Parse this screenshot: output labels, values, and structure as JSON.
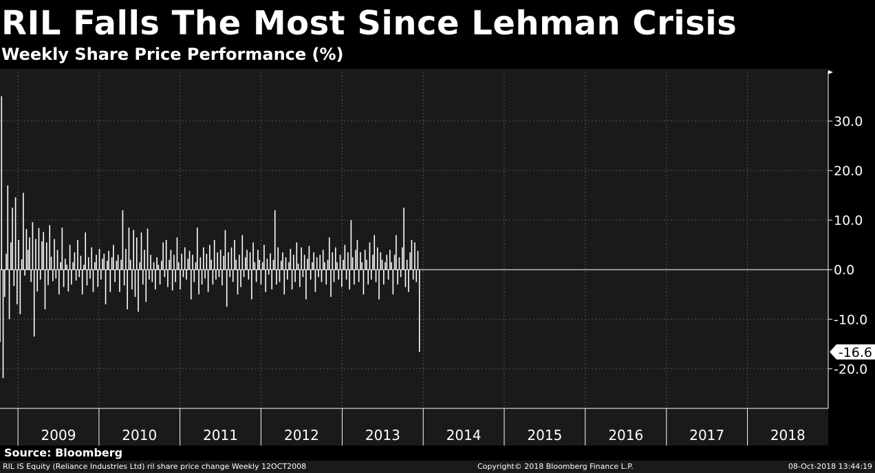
{
  "header": {
    "title": "RIL Falls The Most Since Lehman Crisis",
    "subtitle": "Weekly Share Price Performance (%)"
  },
  "source": "Source: Bloomberg",
  "footer": {
    "left": "RIL IS Equity (Reliance Industries Ltd) ril share price change  Weekly 12OCT2008",
    "center": "Copyright© 2018 Bloomberg Finance L.P.",
    "right": "08-Oct-2018 13:44:19"
  },
  "colors": {
    "background": "#1a1a1a",
    "bars": "#ffffff",
    "grid": "#555555"
  },
  "chart_data": {
    "type": "bar",
    "ylim": [
      -28,
      40
    ],
    "yticks": [
      -20,
      -10,
      0,
      10,
      20,
      30
    ],
    "ytick_labels": [
      "-20.0",
      "-10.0",
      "0.0",
      "10.0",
      "20.0",
      "30.0"
    ],
    "xtick_labels": [
      "2009",
      "2010",
      "2011",
      "2012",
      "2013",
      "2014",
      "2015",
      "2016",
      "2017",
      "2018"
    ],
    "x_start": "2008-10-12",
    "x_end": "2018-12-31",
    "last_value_label": "-16.6",
    "series": [
      {
        "values": [
          -14.6,
          35.0,
          -21.9,
          -5.5,
          3.2,
          17.0,
          -10.0,
          5.5,
          12.5,
          -3.3,
          14.6,
          -7.0,
          6.0,
          -9.0,
          2.1,
          15.5,
          -1.2,
          8.2,
          4.0,
          6.5,
          -2.5,
          9.6,
          -13.5,
          6.2,
          -4.4,
          8.4,
          -2.0,
          5.7,
          7.6,
          -8.0,
          5.5,
          -3.1,
          9.0,
          2.6,
          -2.3,
          6.2,
          -1.8,
          4.0,
          -5.0,
          1.5,
          8.5,
          -3.5,
          2.2,
          1.0,
          -4.4,
          5.0,
          -3.0,
          1.5,
          3.5,
          -2.2,
          6.0,
          -1.5,
          2.8,
          -5.0,
          1.0,
          7.5,
          -3.2,
          2.5,
          -1.8,
          4.5,
          -4.5,
          1.5,
          3.0,
          -3.5,
          4.2,
          -2.0,
          2.2,
          3.2,
          -7.0,
          1.8,
          3.8,
          -4.5,
          2.5,
          5.0,
          -2.5,
          1.8,
          3.0,
          -4.5,
          2.0,
          12.0,
          -3.2,
          4.2,
          -8.0,
          8.5,
          2.0,
          -4.0,
          8.0,
          -5.5,
          6.5,
          -8.5,
          1.5,
          7.5,
          -3.0,
          4.0,
          -6.5,
          8.3,
          -2.0,
          3.0,
          -2.5,
          1.5,
          -4.0,
          2.5,
          1.0,
          -3.0,
          1.8,
          5.5,
          -1.5,
          6.0,
          -3.5,
          2.0,
          4.0,
          -4.2,
          3.0,
          -2.5,
          6.5,
          1.5,
          -4.0,
          3.2,
          -1.5,
          4.5,
          -2.0,
          2.2,
          3.8,
          -6.0,
          3.0,
          -2.5,
          1.5,
          8.5,
          -5.0,
          2.5,
          -3.0,
          4.5,
          -1.8,
          3.2,
          -4.5,
          5.0,
          2.0,
          -3.0,
          6.0,
          -2.0,
          3.5,
          -1.5,
          4.0,
          -3.2,
          2.8,
          8.0,
          -7.5,
          3.5,
          -1.5,
          4.5,
          -2.5,
          6.0,
          2.0,
          -5.0,
          3.0,
          -3.5,
          7.0,
          -1.5,
          2.5,
          4.0,
          -2.0,
          3.5,
          -6.0,
          5.5,
          1.5,
          -2.5,
          4.0,
          2.0,
          -3.0,
          1.5,
          5.0,
          -4.5,
          2.2,
          -1.0,
          3.3,
          -4.0,
          2.0,
          12.0,
          -3.0,
          4.5,
          -2.5,
          1.8,
          3.5,
          -5.0,
          2.5,
          -2.0,
          1.5,
          4.2,
          -4.0,
          3.0,
          -2.5,
          5.5,
          1.2,
          -3.5,
          4.5,
          -1.5,
          3.0,
          -6.0,
          2.2,
          4.8,
          -2.0,
          1.5,
          3.5,
          -4.5,
          2.5,
          -1.5,
          3.0,
          -2.5,
          4.0,
          1.5,
          -3.0,
          2.0,
          6.5,
          -5.5,
          3.5,
          -2.5,
          4.5,
          1.5,
          -2.0,
          3.0,
          -3.5,
          2.0,
          5.0,
          -2.0,
          3.5,
          -4.0,
          10.0,
          2.5,
          -3.0,
          4.0,
          6.0,
          -2.5,
          3.5,
          1.5,
          -5.0,
          4.0,
          2.0,
          -3.0,
          5.5,
          -2.0,
          3.0,
          7.0,
          -2.5,
          4.5,
          -6.0,
          3.5,
          2.0,
          -3.0,
          1.5,
          3.0,
          -2.0,
          4.0,
          1.5,
          -5.0,
          3.0,
          7.0,
          -3.0,
          2.5,
          -1.5,
          4.5,
          12.5,
          -3.5,
          2.0,
          -4.5,
          3.5,
          6.0,
          -2.0,
          5.5,
          -2.5,
          3.8,
          -16.6
        ]
      }
    ]
  }
}
